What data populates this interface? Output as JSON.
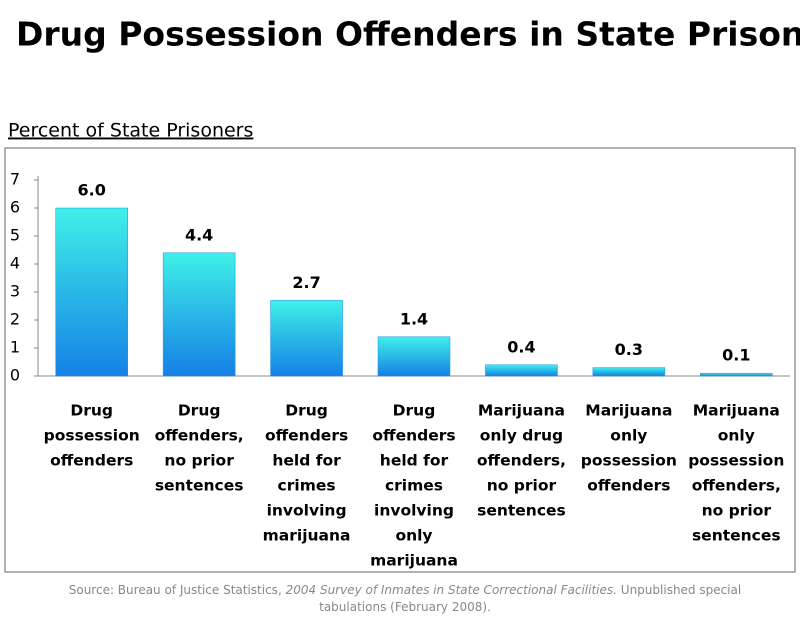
{
  "chart_data": {
    "type": "bar",
    "title": "Drug Possession Offenders in State Prisons",
    "y_axis_label": "Percent of State Prisoners",
    "categories": [
      [
        "Drug",
        "possession",
        "offenders"
      ],
      [
        "Drug",
        "offenders,",
        "no prior",
        "sentences"
      ],
      [
        "Drug",
        "offenders",
        "held for",
        "crimes",
        "involving",
        "marijuana"
      ],
      [
        "Drug",
        "offenders",
        "held for",
        "crimes",
        "involving",
        "only",
        "marijuana"
      ],
      [
        "Marijuana",
        "only drug",
        "offenders,",
        "no prior",
        "sentences"
      ],
      [
        "Marijuana",
        "only",
        "possession",
        "offenders"
      ],
      [
        "Marijuana",
        "only",
        "possession",
        "offenders,",
        "no prior",
        "sentences"
      ]
    ],
    "values": [
      6.0,
      4.4,
      2.7,
      1.4,
      0.4,
      0.3,
      0.1
    ],
    "value_labels": [
      "6.0",
      "4.4",
      "2.7",
      "1.4",
      "0.4",
      "0.3",
      "0.1"
    ],
    "ylim": [
      0,
      7
    ],
    "yticks": [
      0,
      1,
      2,
      3,
      4,
      5,
      6,
      7
    ],
    "grid": false,
    "color": "#1e90e8",
    "source": {
      "prefix": "Source:  Bureau of Justice Statistics,",
      "italic": "2004  Survey  of Inmates in State Correctional Facilities.",
      "suffix": "Unpublished special tabulations (February 2008)."
    }
  }
}
